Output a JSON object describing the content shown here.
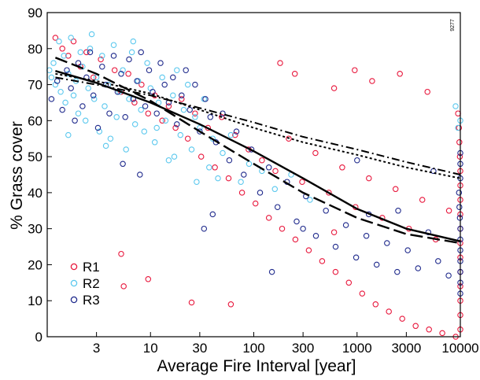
{
  "chart_data": {
    "type": "scatter",
    "title": "",
    "xlabel": "Average Fire Interval [year]",
    "ylabel": "% Grass cover",
    "x_scale": "log",
    "xlim": [
      1,
      10000
    ],
    "ylim": [
      0,
      90
    ],
    "x_ticks": [
      3,
      10,
      30,
      100,
      300,
      1000,
      3000,
      10000
    ],
    "x_tick_labels": [
      "3",
      "10",
      "30",
      "100",
      "300",
      "1000",
      "3000",
      "10000"
    ],
    "y_ticks": [
      0,
      10,
      20,
      30,
      40,
      50,
      60,
      70,
      80,
      90
    ],
    "y_tick_labels": [
      "0",
      "10",
      "20",
      "30",
      "40",
      "50",
      "60",
      "70",
      "80",
      "90"
    ],
    "grid": false,
    "legend_position": "bottom-left",
    "side_note": "9277",
    "colors": {
      "R1": "#e8173c",
      "R2": "#5bc8ee",
      "R3": "#1f2a8c",
      "fit": "#000000"
    },
    "series": [
      {
        "name": "R1",
        "marker": "open-circle",
        "color": "#e8173c",
        "points": [
          [
            1.2,
            83
          ],
          [
            1.4,
            80
          ],
          [
            1.6,
            78
          ],
          [
            1.8,
            82
          ],
          [
            2.1,
            75
          ],
          [
            2.4,
            79
          ],
          [
            2.8,
            72
          ],
          [
            3.3,
            77
          ],
          [
            3.9,
            70
          ],
          [
            4.5,
            74
          ],
          [
            5.2,
            68
          ],
          [
            6.1,
            73
          ],
          [
            7,
            65
          ],
          [
            8.2,
            70
          ],
          [
            9.5,
            62
          ],
          [
            11,
            67
          ],
          [
            13,
            60
          ],
          [
            15,
            64
          ],
          [
            17.5,
            58
          ],
          [
            20,
            66
          ],
          [
            23,
            55
          ],
          [
            27,
            62
          ],
          [
            31,
            50
          ],
          [
            36,
            58
          ],
          [
            42,
            47
          ],
          [
            49,
            61
          ],
          [
            57,
            44
          ],
          [
            66,
            56
          ],
          [
            77,
            40
          ],
          [
            89,
            52
          ],
          [
            104,
            37
          ],
          [
            120,
            49
          ],
          [
            140,
            33
          ],
          [
            162,
            46
          ],
          [
            188,
            30
          ],
          [
            218,
            55
          ],
          [
            253,
            27
          ],
          [
            294,
            43
          ],
          [
            341,
            24
          ],
          [
            396,
            51
          ],
          [
            459,
            21
          ],
          [
            533,
            40
          ],
          [
            619,
            18
          ],
          [
            718,
            47
          ],
          [
            833,
            15
          ],
          [
            967,
            36
          ],
          [
            1122,
            12
          ],
          [
            1302,
            44
          ],
          [
            1511,
            9
          ],
          [
            1754,
            33
          ],
          [
            2035,
            7
          ],
          [
            2362,
            41
          ],
          [
            2741,
            5
          ],
          [
            3181,
            30
          ],
          [
            3692,
            3
          ],
          [
            4284,
            38
          ],
          [
            4972,
            2
          ],
          [
            5770,
            27
          ],
          [
            6696,
            1
          ],
          [
            7771,
            35
          ],
          [
            9019,
            0
          ],
          [
            9500,
            62
          ],
          [
            9700,
            58
          ],
          [
            9800,
            54
          ],
          [
            9900,
            50
          ],
          [
            10000,
            46
          ],
          [
            10000,
            42
          ],
          [
            10000,
            38
          ],
          [
            10000,
            34
          ],
          [
            10000,
            30
          ],
          [
            10000,
            26
          ],
          [
            10000,
            22
          ],
          [
            10000,
            18
          ],
          [
            10000,
            14
          ],
          [
            10000,
            10
          ],
          [
            10000,
            6
          ],
          [
            10000,
            2
          ],
          [
            5.2,
            23
          ],
          [
            5.5,
            14
          ],
          [
            9.5,
            16
          ],
          [
            25,
            9.5
          ],
          [
            60,
            9
          ],
          [
            180,
            76
          ],
          [
            250,
            73
          ],
          [
            600,
            69
          ],
          [
            950,
            74
          ],
          [
            1400,
            71
          ],
          [
            2600,
            73
          ],
          [
            4800,
            68
          ],
          [
            600,
            29
          ]
        ]
      },
      {
        "name": "R2",
        "marker": "open-circle",
        "color": "#5bc8ee",
        "points": [
          [
            1.05,
            74
          ],
          [
            1.1,
            72
          ],
          [
            1.15,
            76
          ],
          [
            1.2,
            70
          ],
          [
            1.3,
            82
          ],
          [
            1.35,
            68
          ],
          [
            1.45,
            78
          ],
          [
            1.5,
            65
          ],
          [
            1.6,
            73
          ],
          [
            1.7,
            83
          ],
          [
            1.8,
            67
          ],
          [
            1.9,
            71
          ],
          [
            2.0,
            62
          ],
          [
            2.1,
            79
          ],
          [
            2.2,
            75
          ],
          [
            2.35,
            60
          ],
          [
            2.5,
            69
          ],
          [
            2.7,
            84
          ],
          [
            2.85,
            66
          ],
          [
            3.0,
            72
          ],
          [
            3.2,
            57
          ],
          [
            3.4,
            78
          ],
          [
            3.6,
            64
          ],
          [
            3.9,
            70
          ],
          [
            4.1,
            55
          ],
          [
            4.4,
            81
          ],
          [
            4.7,
            61
          ],
          [
            5.0,
            68
          ],
          [
            5.4,
            74
          ],
          [
            5.8,
            52
          ],
          [
            6.2,
            66
          ],
          [
            6.6,
            79
          ],
          [
            7.1,
            59
          ],
          [
            7.6,
            71
          ],
          [
            8.1,
            63
          ],
          [
            8.7,
            57
          ],
          [
            9.3,
            76
          ],
          [
            10,
            69
          ],
          [
            11,
            54
          ],
          [
            12,
            65
          ],
          [
            13,
            72
          ],
          [
            14,
            60
          ],
          [
            15,
            49
          ],
          [
            16.5,
            67
          ],
          [
            18,
            74
          ],
          [
            19.5,
            56
          ],
          [
            21,
            63
          ],
          [
            23,
            70
          ],
          [
            25,
            52
          ],
          [
            27,
            61
          ],
          [
            30,
            58
          ],
          [
            33,
            66
          ],
          [
            37,
            47
          ],
          [
            40,
            55
          ],
          [
            45,
            44
          ],
          [
            50,
            51
          ],
          [
            60,
            56
          ],
          [
            75,
            43
          ],
          [
            90,
            48
          ],
          [
            120,
            46
          ],
          [
            160,
            41
          ],
          [
            230,
            45
          ],
          [
            350,
            38
          ],
          [
            2.6,
            80
          ],
          [
            6.8,
            82
          ],
          [
            11.5,
            58
          ],
          [
            17,
            50
          ],
          [
            28,
            43
          ],
          [
            3.7,
            53
          ],
          [
            1.6,
            56
          ],
          [
            9000,
            64
          ],
          [
            9500,
            58
          ],
          [
            10000,
            60
          ]
        ]
      },
      {
        "name": "R3",
        "marker": "open-circle",
        "color": "#1f2a8c",
        "points": [
          [
            1.1,
            66
          ],
          [
            1.25,
            71
          ],
          [
            1.4,
            63
          ],
          [
            1.55,
            74
          ],
          [
            1.7,
            69
          ],
          [
            1.85,
            60
          ],
          [
            2.0,
            76
          ],
          [
            2.2,
            64
          ],
          [
            2.4,
            72
          ],
          [
            2.6,
            79
          ],
          [
            2.8,
            67
          ],
          [
            3.1,
            58
          ],
          [
            3.4,
            75
          ],
          [
            3.7,
            70
          ],
          [
            4.0,
            62
          ],
          [
            4.4,
            78
          ],
          [
            4.8,
            68
          ],
          [
            5.2,
            73
          ],
          [
            5.7,
            61
          ],
          [
            6.2,
            77
          ],
          [
            6.8,
            66
          ],
          [
            7.4,
            71
          ],
          [
            8.1,
            79
          ],
          [
            8.9,
            64
          ],
          [
            9.7,
            74
          ],
          [
            10.5,
            68
          ],
          [
            11.5,
            62
          ],
          [
            12.5,
            76
          ],
          [
            13.7,
            70
          ],
          [
            15,
            65
          ],
          [
            16.5,
            72
          ],
          [
            18,
            59
          ],
          [
            20,
            67
          ],
          [
            22,
            74
          ],
          [
            24,
            63
          ],
          [
            27,
            70
          ],
          [
            30,
            57
          ],
          [
            34,
            66
          ],
          [
            38,
            61
          ],
          [
            43,
            54
          ],
          [
            50,
            62
          ],
          [
            58,
            49
          ],
          [
            68,
            57
          ],
          [
            80,
            45
          ],
          [
            95,
            52
          ],
          [
            115,
            40
          ],
          [
            140,
            47
          ],
          [
            170,
            36
          ],
          [
            210,
            43
          ],
          [
            260,
            32
          ],
          [
            320,
            39
          ],
          [
            400,
            28
          ],
          [
            500,
            35
          ],
          [
            620,
            25
          ],
          [
            780,
            31
          ],
          [
            980,
            22
          ],
          [
            1230,
            28
          ],
          [
            1550,
            20
          ],
          [
            1950,
            26
          ],
          [
            2450,
            18
          ],
          [
            3100,
            24
          ],
          [
            3900,
            19
          ],
          [
            4900,
            29
          ],
          [
            6100,
            21
          ],
          [
            7700,
            17
          ],
          [
            9700,
            40
          ],
          [
            9800,
            36
          ],
          [
            9900,
            33
          ],
          [
            10000,
            30
          ],
          [
            10000,
            27
          ],
          [
            10000,
            24
          ],
          [
            10000,
            21
          ],
          [
            10000,
            18
          ],
          [
            10000,
            15
          ],
          [
            10000,
            12
          ],
          [
            10000,
            44
          ],
          [
            10000,
            48
          ],
          [
            10000,
            51
          ],
          [
            5.4,
            48
          ],
          [
            7.9,
            45
          ],
          [
            40,
            34
          ],
          [
            33,
            30
          ],
          [
            150,
            18
          ],
          [
            1000,
            49
          ],
          [
            1300,
            34
          ],
          [
            2500,
            35
          ],
          [
            5500,
            46
          ],
          [
            300,
            30
          ]
        ]
      }
    ],
    "fits": [
      {
        "style": "solid",
        "color": "#000000",
        "points": [
          [
            1.2,
            73.8
          ],
          [
            3,
            70.5
          ],
          [
            10,
            65
          ],
          [
            30,
            59
          ],
          [
            100,
            51.5
          ],
          [
            300,
            44
          ],
          [
            1000,
            35.5
          ],
          [
            3000,
            30
          ],
          [
            10000,
            26.5
          ]
        ]
      },
      {
        "style": "dashed",
        "color": "#000000",
        "points": [
          [
            1.2,
            77.5
          ],
          [
            3,
            73
          ],
          [
            10,
            65.5
          ],
          [
            30,
            57
          ],
          [
            100,
            48
          ],
          [
            300,
            40
          ],
          [
            1000,
            33
          ],
          [
            3000,
            28.5
          ],
          [
            10000,
            26
          ]
        ]
      },
      {
        "style": "dash-dot",
        "color": "#000000",
        "points": [
          [
            1.2,
            72
          ],
          [
            3,
            70
          ],
          [
            10,
            67
          ],
          [
            30,
            63.5
          ],
          [
            100,
            59.5
          ],
          [
            300,
            55.5
          ],
          [
            1000,
            52
          ],
          [
            3000,
            48.5
          ],
          [
            10000,
            45
          ]
        ]
      },
      {
        "style": "dash-dot-fine",
        "color": "#000000",
        "points": [
          [
            1.2,
            73
          ],
          [
            3,
            71
          ],
          [
            10,
            67.5
          ],
          [
            30,
            63
          ],
          [
            100,
            58
          ],
          [
            300,
            54
          ],
          [
            1000,
            50.5
          ],
          [
            3000,
            47
          ],
          [
            10000,
            44
          ]
        ]
      }
    ]
  }
}
